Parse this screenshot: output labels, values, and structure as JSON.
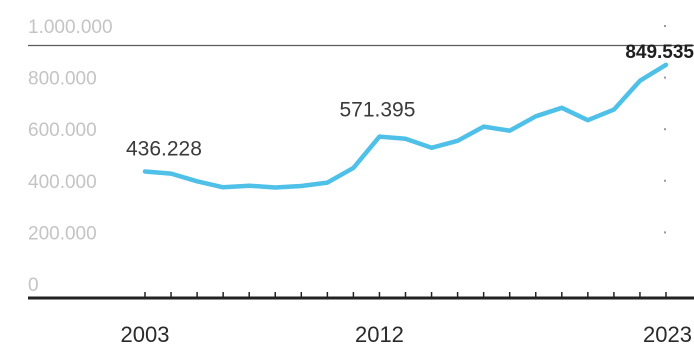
{
  "chart_data": {
    "type": "line",
    "x": [
      2003,
      2004,
      2005,
      2006,
      2007,
      2008,
      2009,
      2010,
      2011,
      2012,
      2013,
      2014,
      2015,
      2016,
      2017,
      2018,
      2019,
      2020,
      2021,
      2022,
      2023
    ],
    "values": [
      436228,
      428000,
      398000,
      375000,
      381000,
      374000,
      380000,
      393000,
      450000,
      571395,
      563000,
      528000,
      555000,
      610000,
      594000,
      650000,
      683000,
      635000,
      676000,
      788000,
      849535
    ],
    "ylim": [
      0,
      1000000
    ],
    "yticks": [
      {
        "value": 0,
        "label": "0"
      },
      {
        "value": 200000,
        "label": "200.000"
      },
      {
        "value": 400000,
        "label": "400.000"
      },
      {
        "value": 600000,
        "label": "600.000"
      },
      {
        "value": 800000,
        "label": "800.000"
      },
      {
        "value": 1000000,
        "label": "1.000.000"
      }
    ],
    "xticks": [
      {
        "value": 2003,
        "label": "2003"
      },
      {
        "value": 2012,
        "label": "2012"
      },
      {
        "value": 2023,
        "label": "2023"
      }
    ],
    "annotations": [
      {
        "x": 2003,
        "label": "436.228",
        "bold": false
      },
      {
        "x": 2012,
        "label": "571.395",
        "bold": false
      },
      {
        "x": 2023,
        "label": "849.535",
        "bold": true
      }
    ],
    "line_color": "#4fc0e8",
    "axis_color": "#222222",
    "grid": false,
    "title": "",
    "xlabel": "",
    "ylabel": ""
  }
}
